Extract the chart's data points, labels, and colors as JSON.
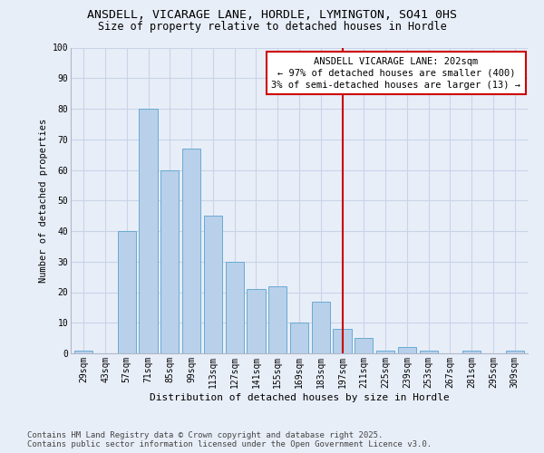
{
  "title": "ANSDELL, VICARAGE LANE, HORDLE, LYMINGTON, SO41 0HS",
  "subtitle": "Size of property relative to detached houses in Hordle",
  "xlabel": "Distribution of detached houses by size in Hordle",
  "ylabel": "Number of detached properties",
  "bar_labels": [
    "29sqm",
    "43sqm",
    "57sqm",
    "71sqm",
    "85sqm",
    "99sqm",
    "113sqm",
    "127sqm",
    "141sqm",
    "155sqm",
    "169sqm",
    "183sqm",
    "197sqm",
    "211sqm",
    "225sqm",
    "239sqm",
    "253sqm",
    "267sqm",
    "281sqm",
    "295sqm",
    "309sqm"
  ],
  "bar_values": [
    1,
    0,
    40,
    80,
    60,
    67,
    45,
    30,
    21,
    22,
    10,
    17,
    8,
    5,
    1,
    2,
    1,
    0,
    1,
    0,
    1
  ],
  "bar_color": "#b8d0ea",
  "bar_edge_color": "#6aaad4",
  "vline_idx": 12,
  "vline_color": "#cc0000",
  "annotation_text": "ANSDELL VICARAGE LANE: 202sqm\n← 97% of detached houses are smaller (400)\n3% of semi-detached houses are larger (13) →",
  "annotation_box_color": "#ffffff",
  "annotation_box_edge": "#cc0000",
  "ylim": [
    0,
    100
  ],
  "yticks": [
    0,
    10,
    20,
    30,
    40,
    50,
    60,
    70,
    80,
    90,
    100
  ],
  "grid_color": "#c8d4e8",
  "background_color": "#e8eef8",
  "footer_text": "Contains HM Land Registry data © Crown copyright and database right 2025.\nContains public sector information licensed under the Open Government Licence v3.0.",
  "title_fontsize": 9.5,
  "subtitle_fontsize": 8.5,
  "axis_label_fontsize": 8,
  "tick_fontsize": 7,
  "annotation_fontsize": 7.5,
  "footer_fontsize": 6.5,
  "ylabel_fontsize": 7.5
}
